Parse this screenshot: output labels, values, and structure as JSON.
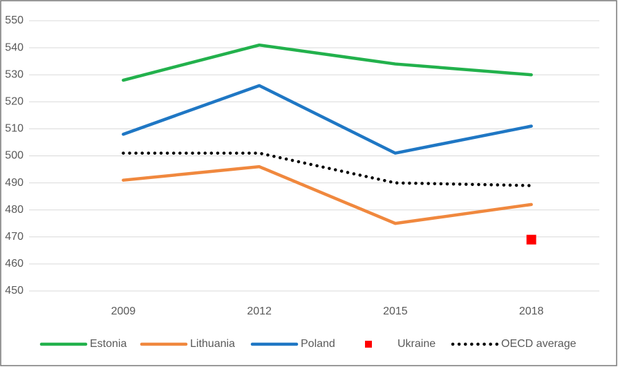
{
  "chart_data": {
    "type": "line",
    "categories": [
      "2009",
      "2012",
      "2015",
      "2018"
    ],
    "series": [
      {
        "name": "Estonia",
        "color": "#22b14c",
        "values": [
          528,
          541,
          534,
          530
        ]
      },
      {
        "name": "Lithuania",
        "color": "#f0883e",
        "values": [
          491,
          496,
          475,
          482
        ]
      },
      {
        "name": "Poland",
        "color": "#1f77c4",
        "values": [
          508,
          526,
          501,
          511
        ]
      },
      {
        "name": "Ukraine",
        "color": "#ff0000",
        "marker": "square",
        "values": [
          null,
          null,
          null,
          469
        ]
      },
      {
        "name": "OECD average",
        "color": "#000000",
        "dash": "dotted",
        "values": [
          501,
          501,
          490,
          489
        ]
      }
    ],
    "ylim": [
      450,
      550
    ],
    "yticks": [
      450,
      460,
      470,
      480,
      490,
      500,
      510,
      520,
      530,
      540,
      550
    ],
    "grid": true,
    "legend": "bottom"
  }
}
